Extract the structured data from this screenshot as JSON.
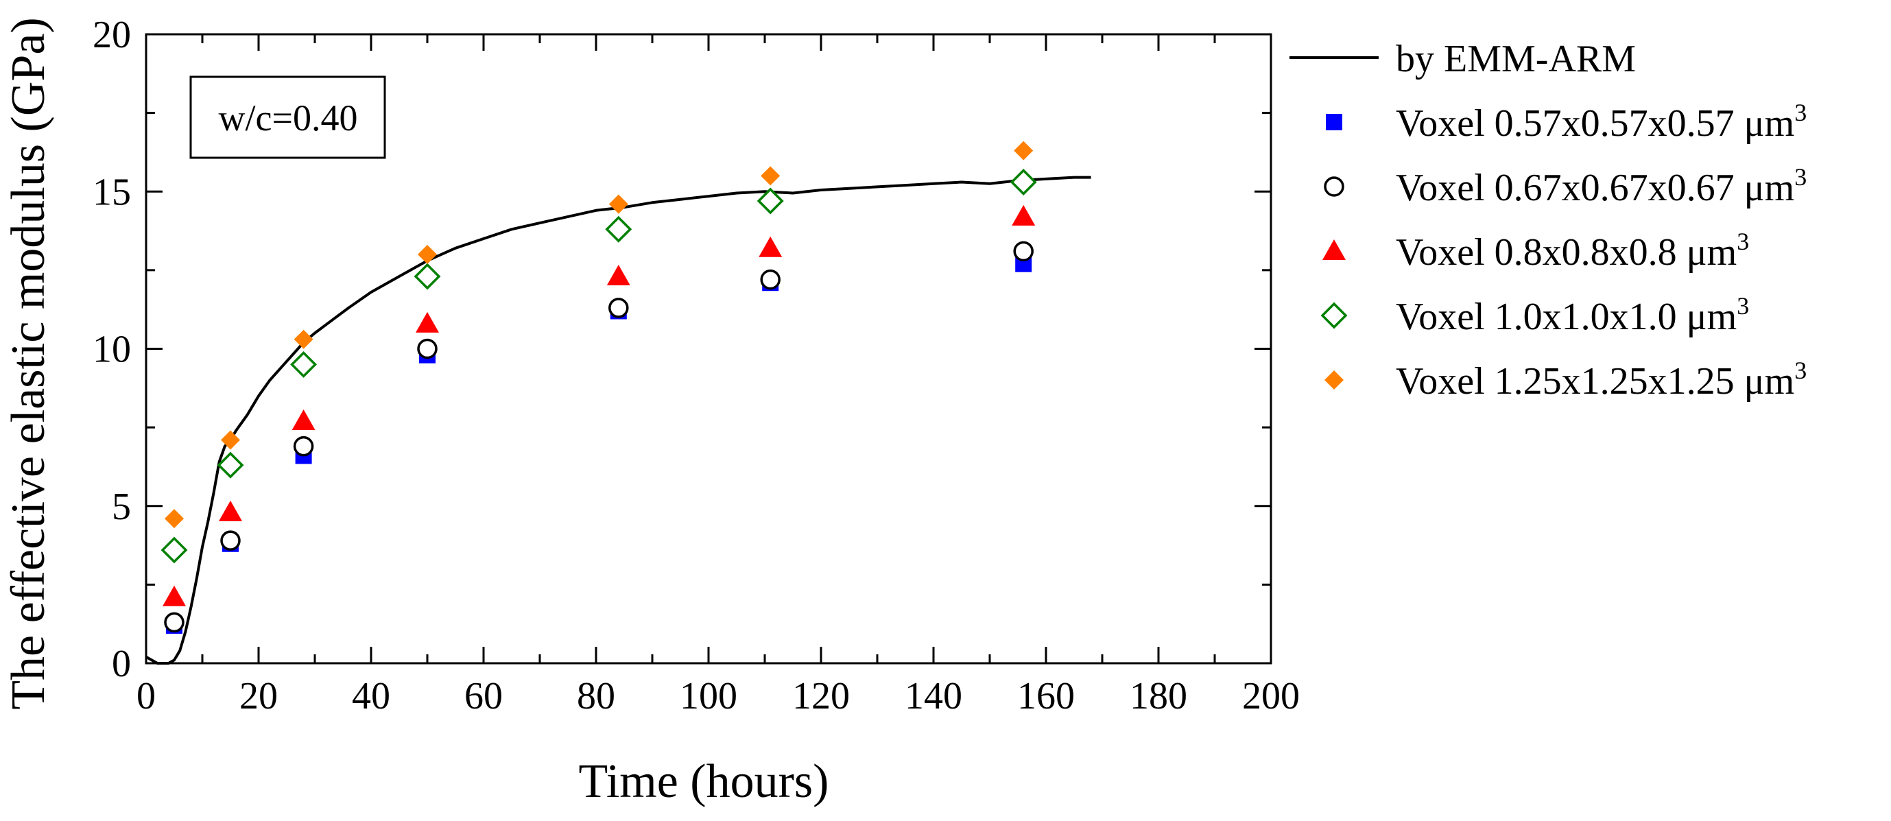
{
  "chart_data": {
    "type": "scatter",
    "title": "",
    "xlabel": "Time (hours)",
    "ylabel": "The effective elastic modulus (GPa)",
    "xlim": [
      0,
      200
    ],
    "ylim": [
      0,
      20
    ],
    "xticks": [
      0,
      20,
      40,
      60,
      80,
      100,
      120,
      140,
      160,
      180,
      200
    ],
    "yticks": [
      0,
      5,
      10,
      15,
      20
    ],
    "xtick_labels": [
      "0",
      "20",
      "40",
      "60",
      "80",
      "100",
      "120",
      "140",
      "160",
      "180",
      "200"
    ],
    "ytick_labels": [
      "0",
      "5",
      "10",
      "15",
      "20"
    ],
    "annotation": "w/c=0.40",
    "legend_position": "right-outside",
    "colors": {
      "black": "#000000",
      "blue": "#0000ff",
      "red": "#ff0000",
      "green": "#008000",
      "orange": "#ff8000"
    },
    "line": {
      "name": "by EMM-ARM",
      "color": "#000000",
      "x": [
        0,
        1,
        2,
        3,
        4,
        5,
        6,
        7,
        8,
        9,
        10,
        11,
        12,
        13,
        14,
        15,
        16,
        18,
        20,
        22,
        25,
        28,
        30,
        33,
        36,
        40,
        45,
        50,
        55,
        60,
        65,
        70,
        75,
        80,
        85,
        90,
        95,
        100,
        105,
        110,
        115,
        120,
        125,
        130,
        135,
        140,
        145,
        150,
        155,
        160,
        165,
        168
      ],
      "y": [
        0.2,
        0.1,
        0.0,
        0.0,
        0.0,
        0.1,
        0.4,
        1.0,
        1.8,
        2.7,
        3.7,
        4.5,
        5.4,
        6.4,
        6.9,
        7.1,
        7.4,
        7.9,
        8.5,
        9.0,
        9.6,
        10.2,
        10.5,
        10.9,
        11.3,
        11.8,
        12.3,
        12.8,
        13.2,
        13.5,
        13.8,
        14.0,
        14.2,
        14.4,
        14.5,
        14.65,
        14.75,
        14.85,
        14.95,
        15.0,
        14.95,
        15.05,
        15.1,
        15.15,
        15.2,
        15.25,
        15.3,
        15.25,
        15.35,
        15.4,
        15.45,
        15.45
      ]
    },
    "series": [
      {
        "name": "Voxel 0.57x0.57x0.57 μm",
        "sup": "3",
        "marker": "square",
        "filled": true,
        "color": "#0000ff",
        "x": [
          5,
          15,
          28,
          50,
          84,
          111,
          156
        ],
        "y": [
          1.2,
          3.8,
          6.6,
          9.8,
          11.2,
          12.1,
          12.7
        ]
      },
      {
        "name": "Voxel 0.67x0.67x0.67 μm",
        "sup": "3",
        "marker": "circle",
        "filled": false,
        "color": "#000000",
        "x": [
          5,
          15,
          28,
          50,
          84,
          111,
          156
        ],
        "y": [
          1.3,
          3.9,
          6.9,
          10.0,
          11.3,
          12.2,
          13.1
        ]
      },
      {
        "name": "Voxel 0.8x0.8x0.8 μm",
        "sup": "3",
        "marker": "triangle",
        "filled": true,
        "color": "#ff0000",
        "x": [
          5,
          15,
          28,
          50,
          84,
          111,
          156
        ],
        "y": [
          2.1,
          4.8,
          7.7,
          10.8,
          12.3,
          13.2,
          14.2
        ]
      },
      {
        "name": "Voxel 1.0x1.0x1.0 μm",
        "sup": "3",
        "marker": "diamond",
        "filled": false,
        "color": "#008000",
        "x": [
          5,
          15,
          28,
          50,
          84,
          111,
          156
        ],
        "y": [
          3.6,
          6.3,
          9.5,
          12.3,
          13.8,
          14.7,
          15.3
        ]
      },
      {
        "name": "Voxel 1.25x1.25x1.25 μm",
        "sup": "3",
        "marker": "diamond",
        "filled": true,
        "color": "#ff8000",
        "x": [
          5,
          15,
          28,
          50,
          84,
          111,
          156
        ],
        "y": [
          4.6,
          7.1,
          10.3,
          13.0,
          14.6,
          15.5,
          16.3
        ]
      }
    ]
  }
}
